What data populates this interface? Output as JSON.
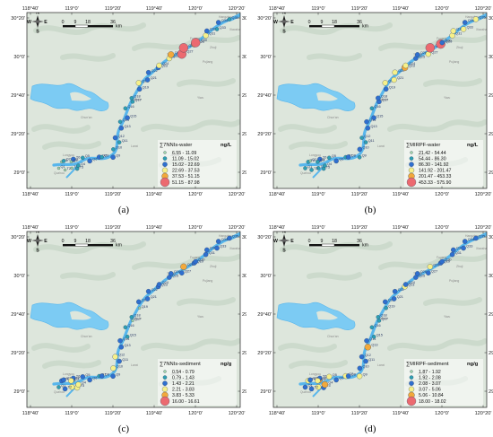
{
  "figure": {
    "panels": [
      {
        "caption": "(a)",
        "legend": {
          "title": "∑7NNIs-water",
          "unit": "ng/L",
          "classes": [
            "6.55 - 11.09",
            "11.09 - 15.02",
            "15.02 - 22.69",
            "22.69 - 37.53",
            "37.53 - 51.15",
            "51.15 - 87.98"
          ]
        },
        "sites": [
          {
            "label": "T1",
            "c": 1
          },
          {
            "label": "T2",
            "c": 1
          },
          {
            "label": "T3",
            "c": 1
          },
          {
            "label": "T4",
            "c": 1
          },
          {
            "label": "T5",
            "c": 2
          },
          {
            "label": "T6",
            "c": 3
          },
          {
            "label": "Q1",
            "c": 1
          },
          {
            "label": "Q2",
            "c": 2
          },
          {
            "label": "Q3",
            "c": 1
          },
          {
            "label": "Q4",
            "c": 2
          },
          {
            "label": "Q5",
            "c": 2
          },
          {
            "label": "Q6",
            "c": 3
          },
          {
            "label": "Q7",
            "c": 3
          },
          {
            "label": "Q8",
            "c": 2
          },
          {
            "label": "Q9",
            "c": 3
          },
          {
            "label": "Q10",
            "c": 2
          },
          {
            "label": "Q11",
            "c": 2
          },
          {
            "label": "Q12",
            "c": 3
          },
          {
            "label": "Q13",
            "c": 3
          },
          {
            "label": "Q14",
            "c": 2
          },
          {
            "label": "Q15",
            "c": 3
          },
          {
            "label": "Q16",
            "c": 2
          },
          {
            "label": "Q17",
            "c": 2
          },
          {
            "label": "Q18",
            "c": 2
          },
          {
            "label": "Q19",
            "c": 3
          },
          {
            "label": "Q20",
            "c": 4
          },
          {
            "label": "Q21",
            "c": 3
          },
          {
            "label": "Q22",
            "c": 3
          },
          {
            "label": "Q23",
            "c": 3
          },
          {
            "label": "Q24",
            "c": 4
          },
          {
            "label": "Q25",
            "c": 4
          },
          {
            "label": "Q26",
            "c": 5
          },
          {
            "label": "Q27",
            "c": 6
          },
          {
            "label": "Q28",
            "c": 6
          },
          {
            "label": "Q29",
            "c": 5
          },
          {
            "label": "Q30",
            "c": 6
          },
          {
            "label": "Q31",
            "c": 4
          },
          {
            "label": "Q32",
            "c": 3
          },
          {
            "label": "Q33",
            "c": 2
          },
          {
            "label": "Q34",
            "c": 3
          },
          {
            "label": "Q35",
            "c": 2
          }
        ]
      },
      {
        "caption": "(b)",
        "legend": {
          "title": "∑MIRPF-water",
          "unit": "ng/L",
          "classes": [
            "21.42 - 54.44",
            "54.44 - 86.30",
            "86.30 - 141.92",
            "141.92 - 201.47",
            "201.47 - 453.33",
            "453.33 - 575.90"
          ]
        },
        "sites": [
          {
            "label": "T1",
            "c": 2
          },
          {
            "label": "T2",
            "c": 2
          },
          {
            "label": "T3",
            "c": 1
          },
          {
            "label": "T4",
            "c": 2
          },
          {
            "label": "T5",
            "c": 2
          },
          {
            "label": "T6",
            "c": 3
          },
          {
            "label": "Q1",
            "c": 2
          },
          {
            "label": "Q2",
            "c": 1
          },
          {
            "label": "Q3",
            "c": 2
          },
          {
            "label": "Q4",
            "c": 2
          },
          {
            "label": "Q5",
            "c": 2
          },
          {
            "label": "Q6",
            "c": 3
          },
          {
            "label": "Q7",
            "c": 2
          },
          {
            "label": "Q8",
            "c": 3
          },
          {
            "label": "Q9",
            "c": 2
          },
          {
            "label": "Q10",
            "c": 3
          },
          {
            "label": "Q11",
            "c": 2
          },
          {
            "label": "Q12",
            "c": 2
          },
          {
            "label": "Q13",
            "c": 3
          },
          {
            "label": "Q14",
            "c": 3
          },
          {
            "label": "Q15",
            "c": 3
          },
          {
            "label": "Q16",
            "c": 2
          },
          {
            "label": "Q17",
            "c": 3
          },
          {
            "label": "Q18",
            "c": 3
          },
          {
            "label": "Q19",
            "c": 3
          },
          {
            "label": "Q20",
            "c": 4
          },
          {
            "label": "Q21",
            "c": 4
          },
          {
            "label": "Q22",
            "c": 4
          },
          {
            "label": "Q23",
            "c": 5
          },
          {
            "label": "Q24",
            "c": 4
          },
          {
            "label": "Q25",
            "c": 3
          },
          {
            "label": "Q26",
            "c": 3
          },
          {
            "label": "Q27",
            "c": 4
          },
          {
            "label": "Q28",
            "c": 6
          },
          {
            "label": "Q29",
            "c": 6
          },
          {
            "label": "Q30",
            "c": 3
          },
          {
            "label": "Q31",
            "c": 4
          },
          {
            "label": "Q32",
            "c": 4
          },
          {
            "label": "Q33",
            "c": 4
          },
          {
            "label": "Q34",
            "c": 3
          },
          {
            "label": "Q35",
            "c": 4
          }
        ]
      },
      {
        "caption": "(c)",
        "legend": {
          "title": "∑7NNIs-sediment",
          "unit": "ng/g",
          "classes": [
            "0.54 - 0.79",
            "0.79 - 1.43",
            "1.43 - 2.21",
            "2.21 - 3.83",
            "3.83 - 5.33",
            "16.00 - 16.61"
          ]
        },
        "sites": [
          {
            "label": "T1",
            "c": 4
          },
          {
            "label": "T2",
            "c": 3
          },
          {
            "label": "T3",
            "c": 3
          },
          {
            "label": "T4",
            "c": 3
          },
          {
            "label": "T5",
            "c": 4
          },
          {
            "label": "T6",
            "c": 3
          },
          {
            "label": "Q1",
            "c": 2
          },
          {
            "label": "Q2",
            "c": 3
          },
          {
            "label": "Q3",
            "c": 4
          },
          {
            "label": "Q4",
            "c": 4
          },
          {
            "label": "Q5",
            "c": 3
          },
          {
            "label": "Q6",
            "c": 3
          },
          {
            "label": "Q7",
            "c": 2
          },
          {
            "label": "Q8",
            "c": 3
          },
          {
            "label": "Q9",
            "c": 3
          },
          {
            "label": "Q10",
            "c": 4
          },
          {
            "label": "Q11",
            "c": 3
          },
          {
            "label": "Q12",
            "c": 4
          },
          {
            "label": "Q13",
            "c": 3
          },
          {
            "label": "Q14",
            "c": 3
          },
          {
            "label": "Q15",
            "c": 2
          },
          {
            "label": "Q16",
            "c": 2
          },
          {
            "label": "Q17",
            "c": 1
          },
          {
            "label": "Q18",
            "c": 2
          },
          {
            "label": "Q19",
            "c": 1
          },
          {
            "label": "Q20",
            "c": 3
          },
          {
            "label": "Q21",
            "c": 3
          },
          {
            "label": "Q22",
            "c": 3
          },
          {
            "label": "Q23",
            "c": 3
          },
          {
            "label": "Q24",
            "c": 3
          },
          {
            "label": "Q25",
            "c": 3
          },
          {
            "label": "Q26",
            "c": 3
          },
          {
            "label": "Q27",
            "c": 3
          },
          {
            "label": "Q28",
            "c": 5
          },
          {
            "label": "Q29",
            "c": 3
          },
          {
            "label": "Q30",
            "c": 3
          },
          {
            "label": "Q31",
            "c": 3
          },
          {
            "label": "Q32",
            "c": 3
          },
          {
            "label": "Q33",
            "c": 3
          },
          {
            "label": "Q34",
            "c": 3
          },
          {
            "label": "Q35",
            "c": 3
          }
        ]
      },
      {
        "caption": "(d)",
        "legend": {
          "title": "∑MIRPF-sediment",
          "unit": "ng/g",
          "classes": [
            "1.87 - 1.92",
            "1.92 - 2.08",
            "2.08 - 3.07",
            "3.07 - 5.06",
            "5.06 - 10.84",
            "18.00 - 18.02"
          ]
        },
        "sites": [
          {
            "label": "T1",
            "c": 4
          },
          {
            "label": "T2",
            "c": 3
          },
          {
            "label": "T3",
            "c": 5
          },
          {
            "label": "T4",
            "c": 4
          },
          {
            "label": "T5",
            "c": 3
          },
          {
            "label": "T6",
            "c": 3
          },
          {
            "label": "Q1",
            "c": 3
          },
          {
            "label": "Q2",
            "c": 3
          },
          {
            "label": "Q3",
            "c": 4
          },
          {
            "label": "Q4",
            "c": 5
          },
          {
            "label": "Q5",
            "c": 4
          },
          {
            "label": "Q6",
            "c": 3
          },
          {
            "label": "Q7",
            "c": 4
          },
          {
            "label": "Q8",
            "c": 3
          },
          {
            "label": "Q9",
            "c": 4
          },
          {
            "label": "Q10",
            "c": 3
          },
          {
            "label": "Q11",
            "c": 3
          },
          {
            "label": "Q12",
            "c": 3
          },
          {
            "label": "Q13",
            "c": 5
          },
          {
            "label": "Q14",
            "c": 3
          },
          {
            "label": "Q15",
            "c": 2
          },
          {
            "label": "Q16",
            "c": 2
          },
          {
            "label": "Q17",
            "c": 2
          },
          {
            "label": "Q18",
            "c": 2
          },
          {
            "label": "Q19",
            "c": 2
          },
          {
            "label": "Q20",
            "c": 3
          },
          {
            "label": "Q21",
            "c": 3
          },
          {
            "label": "Q22",
            "c": 3
          },
          {
            "label": "Q23",
            "c": 4
          },
          {
            "label": "Q24",
            "c": 3
          },
          {
            "label": "Q25",
            "c": 3
          },
          {
            "label": "Q26",
            "c": 3
          },
          {
            "label": "Q27",
            "c": 3
          },
          {
            "label": "Q28",
            "c": 4
          },
          {
            "label": "Q29",
            "c": 3
          },
          {
            "label": "Q30",
            "c": 3
          },
          {
            "label": "Q31",
            "c": 3
          },
          {
            "label": "Q32",
            "c": 3
          },
          {
            "label": "Q33",
            "c": 3
          },
          {
            "label": "Q34",
            "c": 3
          },
          {
            "label": "Q35",
            "c": 3
          }
        ]
      }
    ],
    "axes": {
      "lon_ticks": [
        "118°40'",
        "119°0'",
        "119°20'",
        "119°40'",
        "120°0'",
        "120°20'"
      ],
      "lat_ticks": [
        "30°20'",
        "30°0'",
        "29°40'",
        "29°20'",
        "29°0'"
      ]
    },
    "scale_bar": {
      "ticks": [
        "0",
        "9",
        "18",
        "36"
      ],
      "unit": "km"
    },
    "compass": {
      "N": "N",
      "S": "S",
      "E": "E",
      "W": "W"
    },
    "places": [
      "Hangzhou",
      "Fuyang",
      "Tonglu",
      "Jiande",
      "Chun'an",
      "Lanxi",
      "Jinhua",
      "Longyou",
      "Yiwu",
      "Pujiang",
      "Zhuji",
      "Xiaoshan",
      "Quzhou"
    ],
    "class_colors": [
      "#9fd4a8",
      "#2e9fb3",
      "#2f6fcf",
      "#f6f08a",
      "#f2a93b",
      "#ec6a70"
    ],
    "class_sizes": [
      1.5,
      2.1,
      2.6,
      3.0,
      3.5,
      5.0
    ],
    "colors": {
      "water": "#58b6ec",
      "lake": "#7ccbf3",
      "terrain": "#dde6dc",
      "terrain_dark": "#c5d4c4"
    }
  }
}
